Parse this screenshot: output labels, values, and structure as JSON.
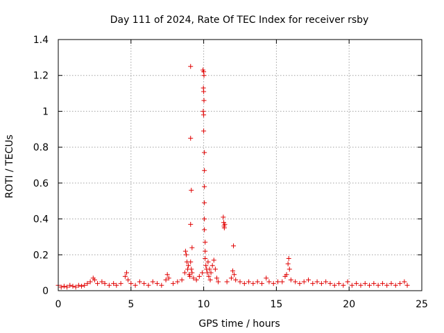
{
  "chart_data": {
    "type": "scatter",
    "title": "Day 111 of 2024, Rate Of TEC Index for receiver rsby",
    "xlabel": "GPS time / hours",
    "ylabel": "ROTI / TECUs",
    "xlim": [
      0,
      25
    ],
    "ylim": [
      0,
      1.4
    ],
    "xticks": [
      "0",
      "5",
      "10",
      "15",
      "20",
      "25"
    ],
    "yticks": [
      "0",
      "0.2",
      "0.4",
      "0.6",
      "0.8",
      "1",
      "1.2",
      "1.4"
    ],
    "grid": true,
    "marker": "+",
    "color": "#e00000",
    "points": [
      [
        0.0,
        0.03
      ],
      [
        0.2,
        0.02
      ],
      [
        0.4,
        0.025
      ],
      [
        0.6,
        0.02
      ],
      [
        0.8,
        0.03
      ],
      [
        1.0,
        0.025
      ],
      [
        1.2,
        0.02
      ],
      [
        1.4,
        0.03
      ],
      [
        1.6,
        0.025
      ],
      [
        1.8,
        0.03
      ],
      [
        2.0,
        0.04
      ],
      [
        2.2,
        0.05
      ],
      [
        2.4,
        0.07
      ],
      [
        2.5,
        0.06
      ],
      [
        2.7,
        0.04
      ],
      [
        3.0,
        0.05
      ],
      [
        3.2,
        0.04
      ],
      [
        3.5,
        0.03
      ],
      [
        3.8,
        0.04
      ],
      [
        4.0,
        0.03
      ],
      [
        4.3,
        0.04
      ],
      [
        4.6,
        0.08
      ],
      [
        4.7,
        0.1
      ],
      [
        4.8,
        0.06
      ],
      [
        5.0,
        0.04
      ],
      [
        5.3,
        0.03
      ],
      [
        5.6,
        0.05
      ],
      [
        5.9,
        0.04
      ],
      [
        6.2,
        0.03
      ],
      [
        6.5,
        0.05
      ],
      [
        6.8,
        0.04
      ],
      [
        7.1,
        0.03
      ],
      [
        7.4,
        0.06
      ],
      [
        7.5,
        0.09
      ],
      [
        7.6,
        0.07
      ],
      [
        7.9,
        0.04
      ],
      [
        8.2,
        0.05
      ],
      [
        8.5,
        0.06
      ],
      [
        8.7,
        0.1
      ],
      [
        8.75,
        0.22
      ],
      [
        8.8,
        0.2
      ],
      [
        8.85,
        0.16
      ],
      [
        8.9,
        0.12
      ],
      [
        8.95,
        0.14
      ],
      [
        9.0,
        0.09
      ],
      [
        9.05,
        0.08
      ],
      [
        9.1,
        0.16
      ],
      [
        9.15,
        0.12
      ],
      [
        9.2,
        0.1
      ],
      [
        9.1,
        1.25
      ],
      [
        9.1,
        0.85
      ],
      [
        9.15,
        0.56
      ],
      [
        9.1,
        0.37
      ],
      [
        9.2,
        0.24
      ],
      [
        9.3,
        0.07
      ],
      [
        9.5,
        0.06
      ],
      [
        9.7,
        0.08
      ],
      [
        9.9,
        0.1
      ],
      [
        9.95,
        1.23
      ],
      [
        10.0,
        1.22
      ],
      [
        10.02,
        1.2
      ],
      [
        9.98,
        1.13
      ],
      [
        10.0,
        1.11
      ],
      [
        10.02,
        1.06
      ],
      [
        9.97,
        1.0
      ],
      [
        10.0,
        0.98
      ],
      [
        10.0,
        0.89
      ],
      [
        10.05,
        0.77
      ],
      [
        10.05,
        0.67
      ],
      [
        10.05,
        0.58
      ],
      [
        10.05,
        0.49
      ],
      [
        10.05,
        0.4
      ],
      [
        10.05,
        0.34
      ],
      [
        10.1,
        0.27
      ],
      [
        10.1,
        0.22
      ],
      [
        10.1,
        0.18
      ],
      [
        10.15,
        0.14
      ],
      [
        10.2,
        0.12
      ],
      [
        10.25,
        0.1
      ],
      [
        10.3,
        0.16
      ],
      [
        10.35,
        0.08
      ],
      [
        10.4,
        0.12
      ],
      [
        10.45,
        0.06
      ],
      [
        10.5,
        0.1
      ],
      [
        10.6,
        0.14
      ],
      [
        10.7,
        0.17
      ],
      [
        10.8,
        0.12
      ],
      [
        10.9,
        0.07
      ],
      [
        11.0,
        0.05
      ],
      [
        11.35,
        0.41
      ],
      [
        11.38,
        0.38
      ],
      [
        11.4,
        0.36
      ],
      [
        11.42,
        0.35
      ],
      [
        11.45,
        0.37
      ],
      [
        11.6,
        0.05
      ],
      [
        11.9,
        0.07
      ],
      [
        12.0,
        0.11
      ],
      [
        12.05,
        0.25
      ],
      [
        12.1,
        0.09
      ],
      [
        12.2,
        0.06
      ],
      [
        12.5,
        0.05
      ],
      [
        12.8,
        0.04
      ],
      [
        13.1,
        0.05
      ],
      [
        13.4,
        0.04
      ],
      [
        13.7,
        0.05
      ],
      [
        14.0,
        0.04
      ],
      [
        14.3,
        0.07
      ],
      [
        14.5,
        0.05
      ],
      [
        14.8,
        0.04
      ],
      [
        15.1,
        0.05
      ],
      [
        15.4,
        0.05
      ],
      [
        15.6,
        0.08
      ],
      [
        15.7,
        0.09
      ],
      [
        15.8,
        0.15
      ],
      [
        15.85,
        0.18
      ],
      [
        15.9,
        0.12
      ],
      [
        16.0,
        0.06
      ],
      [
        16.3,
        0.05
      ],
      [
        16.6,
        0.04
      ],
      [
        16.9,
        0.05
      ],
      [
        17.2,
        0.06
      ],
      [
        17.5,
        0.04
      ],
      [
        17.8,
        0.05
      ],
      [
        18.1,
        0.04
      ],
      [
        18.4,
        0.05
      ],
      [
        18.7,
        0.04
      ],
      [
        19.0,
        0.03
      ],
      [
        19.3,
        0.04
      ],
      [
        19.6,
        0.03
      ],
      [
        19.9,
        0.05
      ],
      [
        20.2,
        0.03
      ],
      [
        20.5,
        0.04
      ],
      [
        20.8,
        0.03
      ],
      [
        21.1,
        0.04
      ],
      [
        21.4,
        0.03
      ],
      [
        21.7,
        0.04
      ],
      [
        22.0,
        0.03
      ],
      [
        22.3,
        0.04
      ],
      [
        22.6,
        0.03
      ],
      [
        22.9,
        0.04
      ],
      [
        23.2,
        0.03
      ],
      [
        23.5,
        0.04
      ],
      [
        23.8,
        0.05
      ],
      [
        24.0,
        0.03
      ]
    ]
  }
}
